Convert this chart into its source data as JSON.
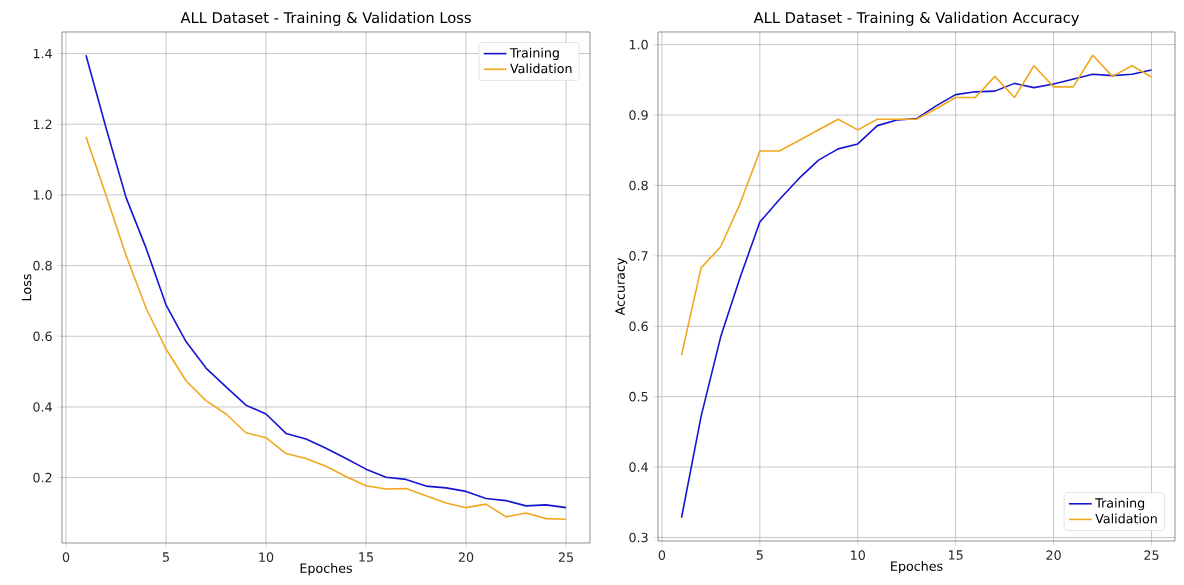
{
  "chart_data": [
    {
      "type": "line",
      "title": "ALL Dataset - Training & Validation Loss",
      "xlabel": "Epoches",
      "ylabel": "Loss",
      "x": [
        1,
        2,
        3,
        4,
        5,
        6,
        7,
        8,
        9,
        10,
        11,
        12,
        13,
        14,
        15,
        16,
        17,
        18,
        19,
        20,
        21,
        22,
        23,
        24,
        25
      ],
      "series": [
        {
          "name": "Training",
          "color": "#1414d2",
          "values": [
            1.395,
            1.19,
            0.993,
            0.85,
            0.689,
            0.585,
            0.51,
            0.457,
            0.405,
            0.38,
            0.325,
            0.309,
            0.283,
            0.254,
            0.224,
            0.201,
            0.195,
            0.176,
            0.171,
            0.161,
            0.141,
            0.135,
            0.12,
            0.123,
            0.115
          ]
        },
        {
          "name": "Validation",
          "color": "#f0a81e",
          "values": [
            1.164,
            1.0,
            0.829,
            0.68,
            0.564,
            0.474,
            0.418,
            0.38,
            0.327,
            0.313,
            0.268,
            0.254,
            0.232,
            0.203,
            0.177,
            0.168,
            0.169,
            0.149,
            0.128,
            0.115,
            0.125,
            0.089,
            0.1,
            0.084,
            0.082
          ]
        }
      ],
      "xlim": [
        -0.2,
        26.2
      ],
      "ylim": [
        0.015,
        1.461
      ],
      "xticks": [
        0,
        5,
        10,
        15,
        20,
        25
      ],
      "yticks": [
        0.2,
        0.4,
        0.6,
        0.8,
        {
          "value": 1.0,
          "label": "1.0"
        },
        1.2,
        1.4
      ],
      "grid": true,
      "legend": "top right"
    },
    {
      "type": "line",
      "title": "ALL Dataset - Training & Validation Accuracy",
      "xlabel": "Epoches",
      "ylabel": "Accuracy",
      "x": [
        1,
        2,
        3,
        4,
        5,
        6,
        7,
        8,
        9,
        10,
        11,
        12,
        13,
        14,
        15,
        16,
        17,
        18,
        19,
        20,
        21,
        22,
        23,
        24,
        25
      ],
      "series": [
        {
          "name": "Training",
          "color": "#1414d2",
          "values": [
            0.328,
            0.472,
            0.585,
            0.67,
            0.748,
            0.78,
            0.81,
            0.836,
            0.852,
            0.859,
            0.885,
            0.893,
            0.895,
            0.913,
            0.929,
            0.933,
            0.934,
            0.945,
            0.939,
            0.944,
            0.951,
            0.958,
            0.956,
            0.958,
            0.964
          ]
        },
        {
          "name": "Validation",
          "color": "#f0a81e",
          "values": [
            0.559,
            0.683,
            0.713,
            0.775,
            0.849,
            0.849,
            0.864,
            0.879,
            0.894,
            0.879,
            0.894,
            0.894,
            0.894,
            0.909,
            0.925,
            0.925,
            0.955,
            0.925,
            0.97,
            0.94,
            0.94,
            0.985,
            0.955,
            0.97,
            0.954
          ]
        }
      ],
      "xlim": [
        -0.2,
        26.2
      ],
      "ylim": [
        0.295,
        1.018
      ],
      "xticks": [
        0,
        5,
        10,
        15,
        20,
        25
      ],
      "yticks": [
        0.3,
        0.4,
        0.5,
        0.6,
        0.7,
        0.8,
        0.9,
        {
          "value": 1.0,
          "label": "1.0"
        }
      ],
      "grid": true,
      "legend": "bottom right"
    }
  ]
}
